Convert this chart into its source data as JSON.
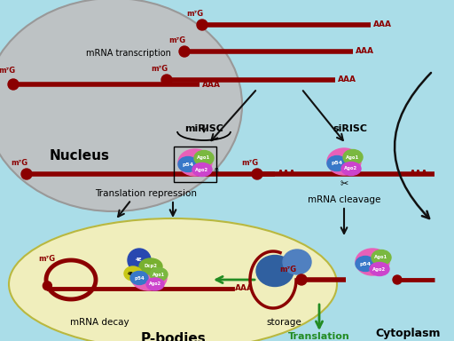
{
  "bg_color": "#aadde8",
  "nucleus_color": "#c0c0c0",
  "nucleus_edge_color": "#999999",
  "mrna_color": "#8b0000",
  "pbody_color": "#f0eebc",
  "arrow_color": "#111111",
  "green_arrow_color": "#228B22",
  "nucleus_label": "Nucleus",
  "transcription_label": "mRNA transcription",
  "miRISC_label": "miRISC",
  "siRISC_label": "siRISC",
  "transl_rep_label": "Translation repression",
  "mrna_cleavage_label": "mRNA cleavage",
  "mrna_decay_label": "mRNA decay",
  "storage_label": "storage",
  "pbodies_label": "P-bodies",
  "translation_label": "Translation",
  "cytoplasm_label": "Cytoplasm",
  "ago1_color": "#7ab840",
  "ago2_color": "#cc44cc",
  "p54_color": "#3878c8",
  "pink_color": "#e860b8",
  "4E_color": "#2848b0",
  "Dcp2_color": "#78b030",
  "4E1_color": "#c8c818",
  "blue_storage_color": "#4878c0"
}
